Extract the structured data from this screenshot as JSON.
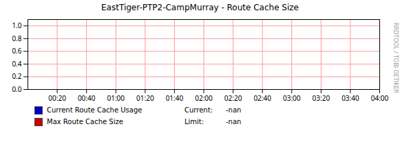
{
  "chart_data": {
    "type": "line",
    "title": "EastTiger-PTP2-CampMurray - Route Cache Size",
    "x": [],
    "series": [
      {
        "name": "Current Route Cache Usage",
        "color": "#0000cc",
        "values": [],
        "annotations": [
          "Current:",
          "-nan"
        ]
      },
      {
        "name": "Max Route Cache Size",
        "color": "#cc0000",
        "values": [],
        "annotations": [
          "Limit:",
          "-nan"
        ]
      }
    ],
    "xlim": [
      0,
      240
    ],
    "xticks": [
      {
        "value": 20,
        "label": "00:20"
      },
      {
        "value": 40,
        "label": "00:40"
      },
      {
        "value": 60,
        "label": "01:00"
      },
      {
        "value": 80,
        "label": "01:20"
      },
      {
        "value": 100,
        "label": "01:40"
      },
      {
        "value": 120,
        "label": "02:00"
      },
      {
        "value": 140,
        "label": "02:20"
      },
      {
        "value": 160,
        "label": "02:40"
      },
      {
        "value": 180,
        "label": "03:00"
      },
      {
        "value": 200,
        "label": "03:20"
      },
      {
        "value": 220,
        "label": "03:40"
      },
      {
        "value": 240,
        "label": "04:00"
      }
    ],
    "ylim": [
      0.0,
      1.1
    ],
    "yticks": [
      {
        "value": 0.0,
        "label": "0.0"
      },
      {
        "value": 0.2,
        "label": "0.2"
      },
      {
        "value": 0.4,
        "label": "0.4"
      },
      {
        "value": 0.6,
        "label": "0.6"
      },
      {
        "value": 0.8,
        "label": "0.8"
      },
      {
        "value": 1.0,
        "label": "1.0"
      }
    ],
    "grid": true,
    "annotations": [
      "RRDTOOL / TOBI OETIKER"
    ]
  }
}
